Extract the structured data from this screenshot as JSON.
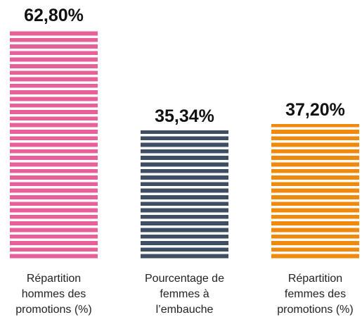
{
  "chart_data": {
    "type": "bar",
    "categories": [
      "Répartition hommes des promotions (%)",
      "Pourcentage de femmes à l’embauche",
      "Répartition femmes des promotions (%)"
    ],
    "values": [
      62.8,
      35.34,
      37.2
    ],
    "value_labels": [
      "62,80%",
      "35,34%",
      "37,20%"
    ],
    "colors": [
      "#e8609a",
      "#3e4f63",
      "#f08a0c"
    ]
  }
}
